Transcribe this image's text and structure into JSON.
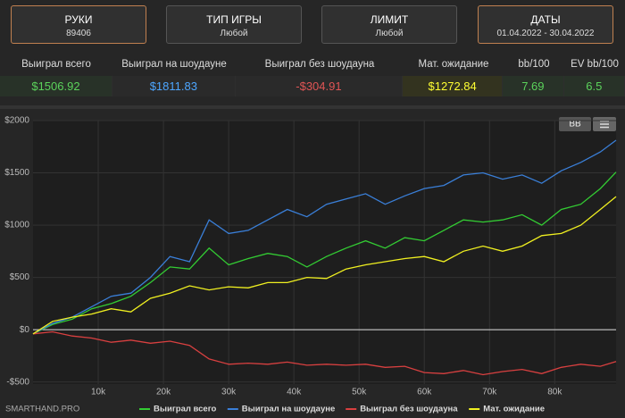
{
  "filters": [
    {
      "title": "РУКИ",
      "value": "89406"
    },
    {
      "title": "ТИП ИГРЫ",
      "value": "Любой"
    },
    {
      "title": "ЛИМИТ",
      "value": "Любой"
    },
    {
      "title": "ДАТЫ",
      "value": "01.04.2022 - 30.04.2022"
    }
  ],
  "stats": {
    "headers": [
      "Выиграл всего",
      "Выиграл на шоудауне",
      "Выиграл без шоудауна",
      "Мат. ожидание",
      "bb/100",
      "EV bb/100"
    ],
    "values": [
      "$1506.92",
      "$1811.83",
      "-$304.91",
      "$1272.84",
      "7.69",
      "6.5"
    ]
  },
  "chart_controls": {
    "unit_button": "BB"
  },
  "watermark": "SMARTHAND.PRO",
  "chart_data": {
    "type": "line",
    "x": [
      0,
      3000,
      6000,
      9000,
      12000,
      15000,
      18000,
      21000,
      24000,
      27000,
      30000,
      33000,
      36000,
      39000,
      42000,
      45000,
      48000,
      51000,
      54000,
      57000,
      60000,
      63000,
      66000,
      69000,
      72000,
      75000,
      78000,
      81000,
      84000,
      87000,
      89406
    ],
    "series": [
      {
        "name": "Выиграл всего",
        "color": "#33cc33",
        "values": [
          -40,
          50,
          100,
          200,
          250,
          320,
          450,
          600,
          580,
          780,
          620,
          680,
          730,
          700,
          600,
          700,
          780,
          850,
          780,
          880,
          850,
          950,
          1050,
          1030,
          1050,
          1100,
          1000,
          1150,
          1200,
          1350,
          1507
        ]
      },
      {
        "name": "Выиграл на шоудауне",
        "color": "#3a7fd8",
        "values": [
          -40,
          60,
          120,
          220,
          320,
          350,
          500,
          700,
          650,
          1050,
          920,
          950,
          1050,
          1150,
          1080,
          1200,
          1250,
          1300,
          1200,
          1280,
          1350,
          1380,
          1480,
          1500,
          1440,
          1480,
          1400,
          1520,
          1600,
          1700,
          1812
        ]
      },
      {
        "name": "Выиграл без шоудауна",
        "color": "#d94040",
        "values": [
          -40,
          -20,
          -60,
          -80,
          -120,
          -100,
          -130,
          -110,
          -150,
          -280,
          -330,
          -320,
          -330,
          -310,
          -340,
          -330,
          -340,
          -330,
          -360,
          -350,
          -410,
          -420,
          -390,
          -430,
          -400,
          -380,
          -420,
          -360,
          -330,
          -350,
          -305
        ]
      },
      {
        "name": "Мат. ожидание",
        "color": "#f0f020",
        "values": [
          -40,
          80,
          120,
          150,
          200,
          170,
          300,
          350,
          420,
          380,
          410,
          400,
          450,
          450,
          500,
          490,
          580,
          620,
          650,
          680,
          700,
          650,
          750,
          800,
          750,
          800,
          900,
          920,
          1000,
          1150,
          1273
        ]
      }
    ],
    "xlim": [
      0,
      89406
    ],
    "xticks": [
      {
        "value": 10000,
        "label": "10k"
      },
      {
        "value": 20000,
        "label": "20k"
      },
      {
        "value": 30000,
        "label": "30k"
      },
      {
        "value": 40000,
        "label": "40k"
      },
      {
        "value": 50000,
        "label": "50k"
      },
      {
        "value": 60000,
        "label": "60k"
      },
      {
        "value": 70000,
        "label": "70k"
      },
      {
        "value": 80000,
        "label": "80k"
      }
    ],
    "ylim": [
      -520,
      2000
    ],
    "yticks": [
      {
        "value": -500,
        "label": "-$500"
      },
      {
        "value": 0,
        "label": "$0"
      },
      {
        "value": 500,
        "label": "$500"
      },
      {
        "value": 1000,
        "label": "$1000"
      },
      {
        "value": 1500,
        "label": "$1500"
      },
      {
        "value": 2000,
        "label": "$2000"
      }
    ],
    "grid": true,
    "legend": "bottom"
  }
}
